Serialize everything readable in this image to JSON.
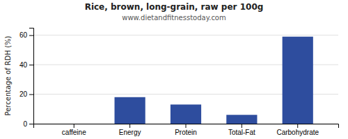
{
  "chart_data": {
    "type": "bar",
    "title": "Rice, brown, long-grain, raw per 100g",
    "subtitle": "www.dietandfitnesstoday.com",
    "categories": [
      "caffeine",
      "Energy",
      "Protein",
      "Total-Fat",
      "Carbohydrate"
    ],
    "values": [
      0,
      18,
      13,
      6,
      59
    ],
    "color": "#2e4d9e",
    "ylabel": "Percentage of RDH (%)",
    "ylim": [
      0,
      65
    ],
    "yticks": [
      0,
      20,
      40,
      60
    ],
    "grid": true
  }
}
